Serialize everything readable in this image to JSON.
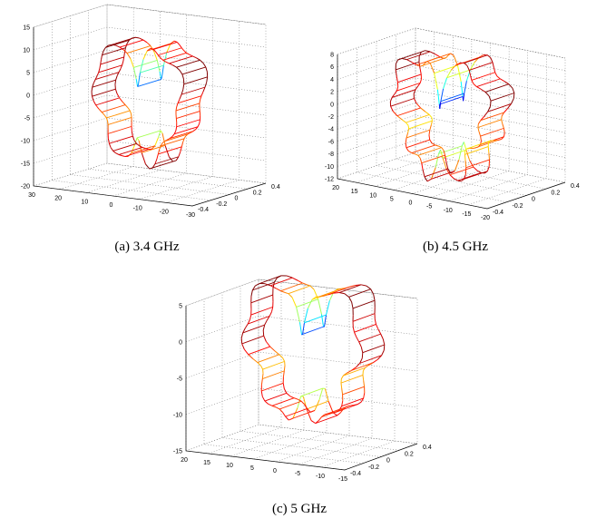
{
  "chart_data": [
    {
      "type": "3d-line",
      "caption": "(a) 3.4 GHz",
      "z_ticks": [
        "15",
        "10",
        "5",
        "0",
        "-5",
        "-10",
        "-15",
        "-20"
      ],
      "x_ticks": [
        "30",
        "20",
        "10",
        "0",
        "-10",
        "-20",
        "-30"
      ],
      "y_ticks": [
        "-0.4",
        "-0.2",
        "0",
        "0.2",
        "0.4"
      ],
      "zlim": [
        -20,
        15
      ],
      "xlim": [
        30,
        -30
      ],
      "ylim": [
        -0.4,
        0.4
      ],
      "grid": true,
      "colormap": "jet",
      "pattern": {
        "radius_min": 14,
        "radius_max": 22,
        "notch_depth": 12,
        "lobes": 7,
        "wall_depth": 0.32
      }
    },
    {
      "type": "3d-line",
      "caption": "(b) 4.5 GHz",
      "z_ticks": [
        "8",
        "6",
        "4",
        "2",
        "0",
        "-2",
        "-4",
        "-6",
        "-8",
        "-10",
        "-12"
      ],
      "x_ticks": [
        "20",
        "15",
        "10",
        "5",
        "0",
        "-5",
        "-10",
        "-15",
        "-20"
      ],
      "y_ticks": [
        "-0.4",
        "-0.2",
        "0",
        "0.2",
        "0.4"
      ],
      "zlim": [
        -12,
        8
      ],
      "xlim": [
        20,
        -20
      ],
      "ylim": [
        -0.4,
        0.4
      ],
      "grid": true,
      "colormap": "jet",
      "pattern": {
        "radius_min": 9,
        "radius_max": 17,
        "notch_depth": 10,
        "lobes": 9,
        "wall_depth": 0.3
      }
    },
    {
      "type": "3d-line",
      "caption": "(c) 5 GHz",
      "z_ticks": [
        "5",
        "0",
        "-5",
        "-10",
        "-15"
      ],
      "x_ticks": [
        "20",
        "15",
        "10",
        "5",
        "0",
        "-5",
        "-10",
        "-15"
      ],
      "y_ticks": [
        "-0.4",
        "-0.2",
        "0",
        "0.2",
        "0.4"
      ],
      "zlim": [
        -15,
        5
      ],
      "xlim": [
        20,
        -15
      ],
      "ylim": [
        -0.4,
        0.4
      ],
      "grid": true,
      "colormap": "jet",
      "pattern": {
        "radius_min": 10,
        "radius_max": 17,
        "notch_depth": 11,
        "lobes": 8,
        "wall_depth": 0.3
      }
    }
  ]
}
